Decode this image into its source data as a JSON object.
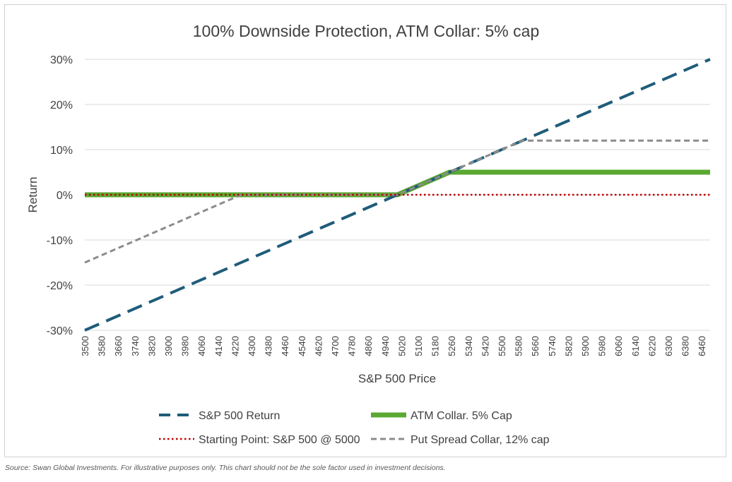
{
  "chart_data": {
    "type": "line",
    "title": "100% Downside Protection, ATM Collar: 5% cap",
    "xlabel": "S&P 500 Price",
    "ylabel": "Return",
    "x_tick_labels": [
      "3500",
      "3580",
      "3660",
      "3740",
      "3820",
      "3900",
      "3980",
      "4060",
      "4140",
      "4220",
      "4300",
      "4380",
      "4460",
      "4540",
      "4620",
      "4700",
      "4780",
      "4860",
      "4940",
      "5020",
      "5100",
      "5180",
      "5260",
      "5340",
      "5420",
      "5500",
      "5580",
      "5660",
      "5740",
      "5820",
      "5900",
      "5980",
      "6060",
      "6140",
      "6220",
      "6300",
      "6380",
      "6460"
    ],
    "xlim": [
      3500,
      6500
    ],
    "y_tick_labels": [
      "30%",
      "20%",
      "10%",
      "0%",
      "-10%",
      "-20%",
      "-30%"
    ],
    "ylim": [
      -0.3,
      0.3
    ],
    "grid": "horizontal",
    "legend_position": "bottom",
    "series": [
      {
        "name": "S&P 500 Return",
        "style": "dashed",
        "color": "#1f5c7a",
        "points": [
          [
            3500,
            -0.3
          ],
          [
            6500,
            0.3
          ]
        ]
      },
      {
        "name": "ATM Collar. 5% Cap",
        "style": "solid-thick",
        "color": "#5aa832",
        "points": [
          [
            3500,
            0.0
          ],
          [
            5000,
            0.0
          ],
          [
            5250,
            0.05
          ],
          [
            6500,
            0.05
          ]
        ]
      },
      {
        "name": "Starting Point: S&P 500 @ 5000",
        "style": "dotted",
        "color": "#c00000",
        "points": [
          [
            3500,
            0.0
          ],
          [
            6500,
            0.0
          ]
        ]
      },
      {
        "name": "Put Spread Collar, 12% cap",
        "style": "dashed",
        "color": "#8c8c8c",
        "points": [
          [
            3500,
            -0.15
          ],
          [
            4250,
            0.0
          ],
          [
            5000,
            0.0
          ],
          [
            5600,
            0.12
          ],
          [
            6500,
            0.12
          ]
        ]
      }
    ]
  },
  "source_note": "Source: Swan Global Investments. For illustrative purposes only. This chart should not be the sole factor used in investment decisions."
}
